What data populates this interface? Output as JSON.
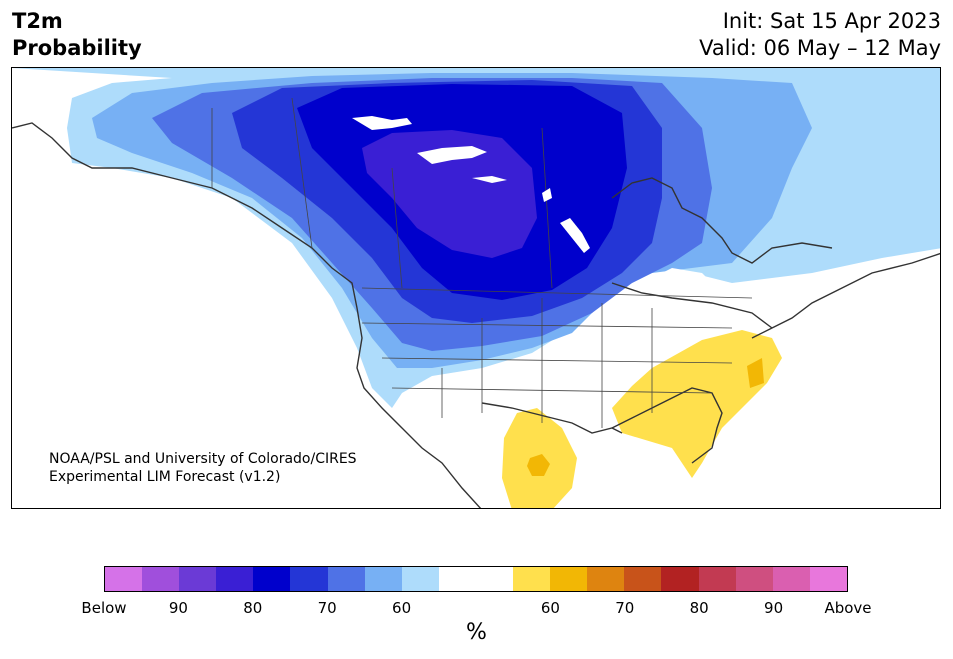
{
  "header": {
    "title_line1": "T2m",
    "title_line2": "Probability",
    "init": "Init: Sat 15 Apr 2023",
    "valid": "Valid: 06 May – 12 May"
  },
  "credit": {
    "line1": "NOAA/PSL and University of Colorado/CIRES",
    "line2": "Experimental LIM Forecast (v1.2)"
  },
  "colorbar": {
    "colors": [
      "#d572e8",
      "#a04fdc",
      "#6b3ad6",
      "#3a1fd4",
      "#0000cc",
      "#2436d6",
      "#4f72e6",
      "#77b0f4",
      "#aedcfb",
      "#ffffff",
      "#ffe04d",
      "#f2b705",
      "#de8410",
      "#c8531a",
      "#b22222",
      "#c23a52",
      "#cf4f80",
      "#da5fb0",
      "#e877dc"
    ],
    "labels": [
      "Below",
      "90",
      "80",
      "70",
      "60",
      "60",
      "70",
      "80",
      "90",
      "Above"
    ],
    "units": "%"
  },
  "map": {
    "region": "North America",
    "shading": "below-normal probability (blue) over Canada and northern/western US; above-normal probability (yellow) over southeastern US and Mexico"
  }
}
